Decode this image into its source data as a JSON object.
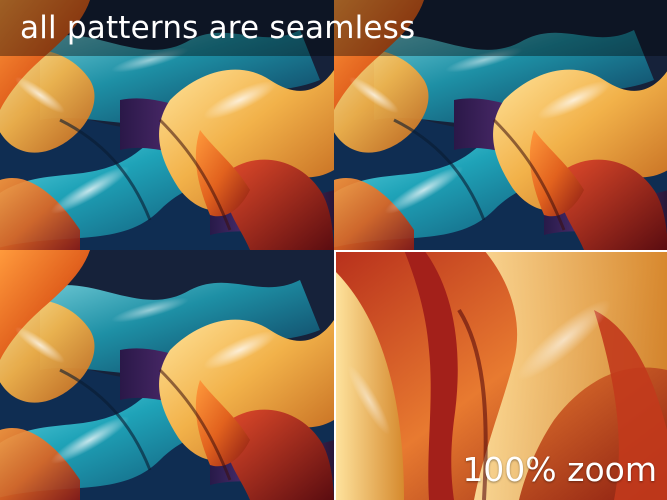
{
  "headline": "all patterns are seamless",
  "inset": {
    "label": "100% zoom"
  },
  "colors": {
    "teal": "#1fa3b8",
    "deep_blue": "#123a6a",
    "purple": "#5a2a70",
    "gold": "#f2b24a",
    "orange": "#e2621e",
    "red": "#a8201c",
    "overlay": "#000000",
    "text": "#ffffff"
  }
}
